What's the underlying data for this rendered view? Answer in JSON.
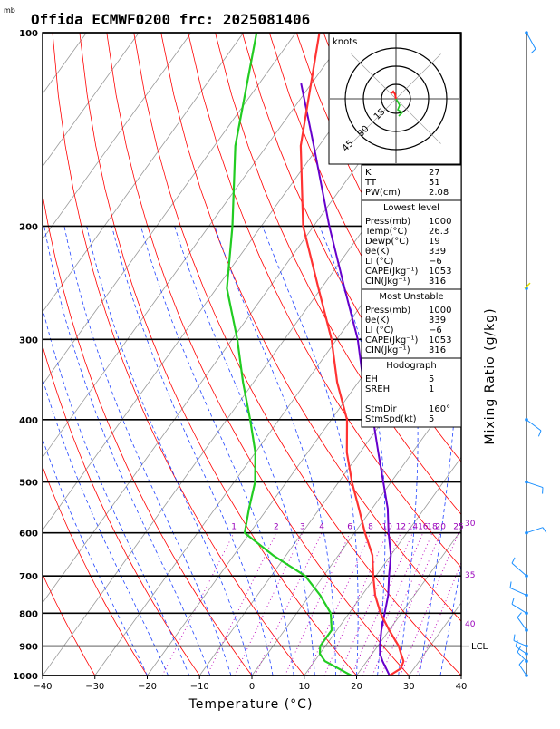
{
  "header": {
    "unit_mb": "mb",
    "title": "Offida ECMWF0200 frc: 2025081406"
  },
  "chart_data": {
    "type": "skew-t",
    "xlabel": "Temperature (°C)",
    "ylabel_right": "Mixing Ratio (g/kg)",
    "xlim": [
      -40,
      40
    ],
    "ylim_mb": [
      1000,
      100
    ],
    "x_ticks": [
      "−40",
      "−30",
      "−20",
      "−10",
      "0",
      "10",
      "20",
      "30",
      "40"
    ],
    "p_ticks": [
      {
        "p": 1000,
        "label": "1000"
      },
      {
        "p": 900,
        "label": "900"
      },
      {
        "p": 800,
        "label": "800"
      },
      {
        "p": 700,
        "label": "700"
      },
      {
        "p": 600,
        "label": "600"
      },
      {
        "p": 500,
        "label": "500"
      },
      {
        "p": 400,
        "label": "400"
      },
      {
        "p": 300,
        "label": "300"
      },
      {
        "p": 200,
        "label": "200"
      },
      {
        "p": 100,
        "label": "100"
      }
    ],
    "mixing_ratio_labels": [
      "1",
      "2",
      "3",
      "4",
      "6",
      "8",
      "10",
      "12",
      "14",
      "16",
      "18",
      "20",
      "25",
      "30"
    ],
    "theta_e_labels": [
      "30",
      "35",
      "40"
    ],
    "lcl_label": "LCL",
    "lcl_pressure_mb": 900,
    "temperature_profile": [
      {
        "p": 1000,
        "t": 26.3
      },
      {
        "p": 975,
        "t": 27.5
      },
      {
        "p": 950,
        "t": 27.0
      },
      {
        "p": 925,
        "t": 25.5
      },
      {
        "p": 900,
        "t": 24.0
      },
      {
        "p": 850,
        "t": 20.0
      },
      {
        "p": 800,
        "t": 16.0
      },
      {
        "p": 750,
        "t": 12.5
      },
      {
        "p": 700,
        "t": 9.5
      },
      {
        "p": 650,
        "t": 6.5
      },
      {
        "p": 600,
        "t": 2.0
      },
      {
        "p": 550,
        "t": -2.5
      },
      {
        "p": 500,
        "t": -7.5
      },
      {
        "p": 450,
        "t": -12.5
      },
      {
        "p": 400,
        "t": -17.0
      },
      {
        "p": 350,
        "t": -24.0
      },
      {
        "p": 300,
        "t": -31.0
      },
      {
        "p": 250,
        "t": -40.5
      },
      {
        "p": 200,
        "t": -52.0
      },
      {
        "p": 150,
        "t": -63.5
      },
      {
        "p": 100,
        "t": -75.5
      }
    ],
    "dewpoint_profile": [
      {
        "p": 1000,
        "t": 19.0
      },
      {
        "p": 950,
        "t": 12.0
      },
      {
        "p": 925,
        "t": 10.0
      },
      {
        "p": 900,
        "t": 9.0
      },
      {
        "p": 850,
        "t": 9.0
      },
      {
        "p": 800,
        "t": 6.5
      },
      {
        "p": 750,
        "t": 2.0
      },
      {
        "p": 700,
        "t": -3.5
      },
      {
        "p": 650,
        "t": -12.5
      },
      {
        "p": 600,
        "t": -21.0
      },
      {
        "p": 550,
        "t": -23.5
      },
      {
        "p": 500,
        "t": -26.0
      },
      {
        "p": 450,
        "t": -30.0
      },
      {
        "p": 400,
        "t": -35.5
      },
      {
        "p": 350,
        "t": -42.0
      },
      {
        "p": 300,
        "t": -49.0
      },
      {
        "p": 250,
        "t": -58.0
      },
      {
        "p": 200,
        "t": -65.5
      },
      {
        "p": 150,
        "t": -76.0
      },
      {
        "p": 100,
        "t": -87.5
      }
    ],
    "parcel_profile": [
      {
        "p": 1000,
        "t": 26.3
      },
      {
        "p": 950,
        "t": 23.0
      },
      {
        "p": 925,
        "t": 21.5
      },
      {
        "p": 900,
        "t": 20.4
      },
      {
        "p": 850,
        "t": 18.5
      },
      {
        "p": 800,
        "t": 16.8
      },
      {
        "p": 750,
        "t": 15.0
      },
      {
        "p": 700,
        "t": 12.5
      },
      {
        "p": 650,
        "t": 10.0
      },
      {
        "p": 600,
        "t": 6.5
      },
      {
        "p": 550,
        "t": 3.0
      },
      {
        "p": 500,
        "t": -1.5
      },
      {
        "p": 450,
        "t": -6.5
      },
      {
        "p": 400,
        "t": -12.0
      },
      {
        "p": 350,
        "t": -19.0
      },
      {
        "p": 300,
        "t": -26.0
      },
      {
        "p": 250,
        "t": -35.5
      },
      {
        "p": 200,
        "t": -47.0
      },
      {
        "p": 150,
        "t": -61.0
      },
      {
        "p": 120,
        "t": -72.0
      }
    ]
  },
  "hodograph": {
    "units_label": "knots",
    "ring_labels": [
      "15",
      "30",
      "45"
    ]
  },
  "indices": {
    "rows": [
      {
        "label": "K",
        "value": "27"
      },
      {
        "label": "TT",
        "value": "51"
      },
      {
        "label": "PW(cm)",
        "value": "2.08"
      }
    ]
  },
  "lowest_level": {
    "header": "Lowest level",
    "rows": [
      {
        "label": "Press(mb)",
        "value": "1000"
      },
      {
        "label": "Temp(°C)",
        "value": "26.3"
      },
      {
        "label": "Dewp(°C)",
        "value": "19"
      },
      {
        "label": "θe(K)",
        "value": "339"
      },
      {
        "label": "LI (°C)",
        "value": "−6"
      },
      {
        "label": "CAPE(Jkg⁻¹)",
        "value": "1053"
      },
      {
        "label": "CIN(Jkg⁻¹)",
        "value": "316"
      }
    ]
  },
  "most_unstable": {
    "header": "Most Unstable",
    "rows": [
      {
        "label": "Press(mb)",
        "value": "1000"
      },
      {
        "label": "θe(K)",
        "value": "339"
      },
      {
        "label": "LI (°C)",
        "value": "−6"
      },
      {
        "label": "CAPE(Jkg⁻¹)",
        "value": "1053"
      },
      {
        "label": "CIN(Jkg⁻¹)",
        "value": "316"
      }
    ]
  },
  "hodo_params": {
    "header": "Hodograph",
    "rows": [
      {
        "label": "EH",
        "value": "5"
      },
      {
        "label": "SREH",
        "value": "1"
      },
      {
        "label": "",
        "value": ""
      },
      {
        "label": "StmDir",
        "value": "160°"
      },
      {
        "label": "StmSpd(kt)",
        "value": "5"
      }
    ]
  },
  "colors": {
    "temperature": "#ff3333",
    "dewpoint": "#22cc22",
    "parcel": "#6600cc",
    "isotherm": "#999999",
    "dry_adiabat": "#ff0000",
    "moist_adiabat": "#2244ff",
    "mixing_ratio": "#bb00bb",
    "wind_barb": "#1a8fff"
  }
}
